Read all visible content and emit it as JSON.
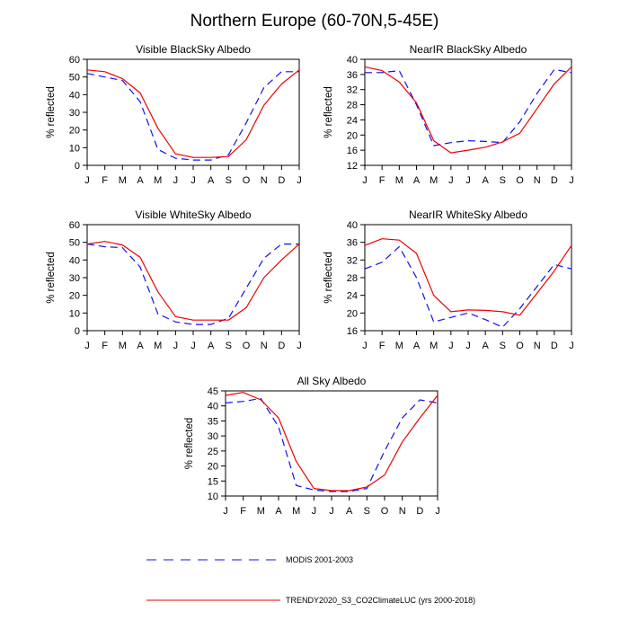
{
  "figure_title": "Northern Europe (60-70N,5-45E)",
  "colors": {
    "modis": "#1010ee",
    "trendy": "#ee0000"
  },
  "legend": [
    {
      "label": "MODIS 2001-2003",
      "style": "dashed",
      "color": "#1010ee"
    },
    {
      "label": "TRENDY2020_S3_CO2ClimateLUC (yrs 2000-2018)",
      "style": "solid",
      "color": "#ee0000"
    }
  ],
  "chart_data": [
    {
      "type": "line",
      "title": "Visible BlackSky Albedo",
      "ylabel": "% reflected",
      "categories": [
        "J",
        "F",
        "M",
        "A",
        "M",
        "J",
        "J",
        "A",
        "S",
        "O",
        "N",
        "D",
        "J"
      ],
      "ylim": [
        0,
        60
      ],
      "yticks": [
        0,
        10,
        20,
        30,
        40,
        50,
        60
      ],
      "series": [
        {
          "name": "MODIS 2001-2003",
          "values": [
            52,
            50,
            48,
            36,
            9,
            4,
            3,
            3,
            6,
            24,
            44,
            53,
            53
          ]
        },
        {
          "name": "TRENDY2020_S3_CO2ClimateLUC (yrs 2000-2018)",
          "values": [
            54,
            53,
            49,
            41,
            21,
            6.5,
            4.5,
            4.5,
            5,
            14.5,
            34,
            46,
            54
          ]
        }
      ]
    },
    {
      "type": "line",
      "title": "NearIR BlackSky Albedo",
      "ylabel": "% reflected",
      "categories": [
        "J",
        "F",
        "M",
        "A",
        "M",
        "J",
        "J",
        "A",
        "S",
        "O",
        "N",
        "D",
        "J"
      ],
      "ylim": [
        12,
        40
      ],
      "yticks": [
        12,
        16,
        20,
        24,
        28,
        32,
        36,
        40
      ],
      "series": [
        {
          "name": "MODIS 2001-2003",
          "values": [
            36.5,
            36.5,
            37,
            28,
            17.2,
            18,
            18.5,
            18.3,
            18,
            23.5,
            31,
            37.3,
            36.5
          ]
        },
        {
          "name": "TRENDY2020_S3_CO2ClimateLUC (yrs 2000-2018)",
          "values": [
            38,
            37,
            34,
            28.5,
            18.5,
            15.3,
            16,
            16.8,
            18.2,
            20.5,
            27,
            33.5,
            38
          ]
        }
      ]
    },
    {
      "type": "line",
      "title": "Visible WhiteSky Albedo",
      "ylabel": "% reflected",
      "categories": [
        "J",
        "F",
        "M",
        "A",
        "M",
        "J",
        "J",
        "A",
        "S",
        "O",
        "N",
        "D",
        "J"
      ],
      "ylim": [
        0,
        60
      ],
      "yticks": [
        0,
        10,
        20,
        30,
        40,
        50,
        60
      ],
      "series": [
        {
          "name": "MODIS 2001-2003",
          "values": [
            49,
            47.5,
            47,
            36,
            9.5,
            5,
            3.5,
            3.5,
            7,
            24,
            41,
            49,
            49
          ]
        },
        {
          "name": "TRENDY2020_S3_CO2ClimateLUC (yrs 2000-2018)",
          "values": [
            49,
            50.5,
            48.5,
            41.5,
            22,
            8,
            6,
            6,
            6,
            13,
            30,
            40,
            49
          ]
        }
      ]
    },
    {
      "type": "line",
      "title": "NearIR WhiteSky Albedo",
      "ylabel": "% reflected",
      "categories": [
        "J",
        "F",
        "M",
        "A",
        "M",
        "J",
        "J",
        "A",
        "S",
        "O",
        "N",
        "D",
        "J"
      ],
      "ylim": [
        16,
        40
      ],
      "yticks": [
        16,
        20,
        24,
        28,
        32,
        36,
        40
      ],
      "series": [
        {
          "name": "MODIS 2001-2003",
          "values": [
            30,
            31.5,
            35,
            28,
            18,
            19,
            20,
            18.5,
            16.8,
            21,
            26,
            31,
            30
          ]
        },
        {
          "name": "TRENDY2020_S3_CO2ClimateLUC (yrs 2000-2018)",
          "values": [
            35.3,
            36.8,
            36.5,
            33.5,
            24,
            20.3,
            20.7,
            20.6,
            20.3,
            19.5,
            24.5,
            29.5,
            35.3
          ]
        }
      ]
    },
    {
      "type": "line",
      "title": "All Sky Albedo",
      "ylabel": "% reflected",
      "categories": [
        "J",
        "F",
        "M",
        "A",
        "M",
        "J",
        "J",
        "A",
        "S",
        "O",
        "N",
        "D",
        "J"
      ],
      "ylim": [
        10,
        45
      ],
      "yticks": [
        10,
        15,
        20,
        25,
        30,
        35,
        40,
        45
      ],
      "series": [
        {
          "name": "MODIS 2001-2003",
          "values": [
            41,
            41.5,
            42.5,
            33,
            13.5,
            12,
            11.5,
            11.5,
            12.5,
            25,
            36,
            42,
            41
          ]
        },
        {
          "name": "TRENDY2020_S3_CO2ClimateLUC (yrs 2000-2018)",
          "values": [
            43.5,
            44.5,
            42,
            36,
            21.5,
            12.5,
            11.8,
            11.8,
            13,
            17,
            28,
            36,
            43.5
          ]
        }
      ]
    }
  ]
}
